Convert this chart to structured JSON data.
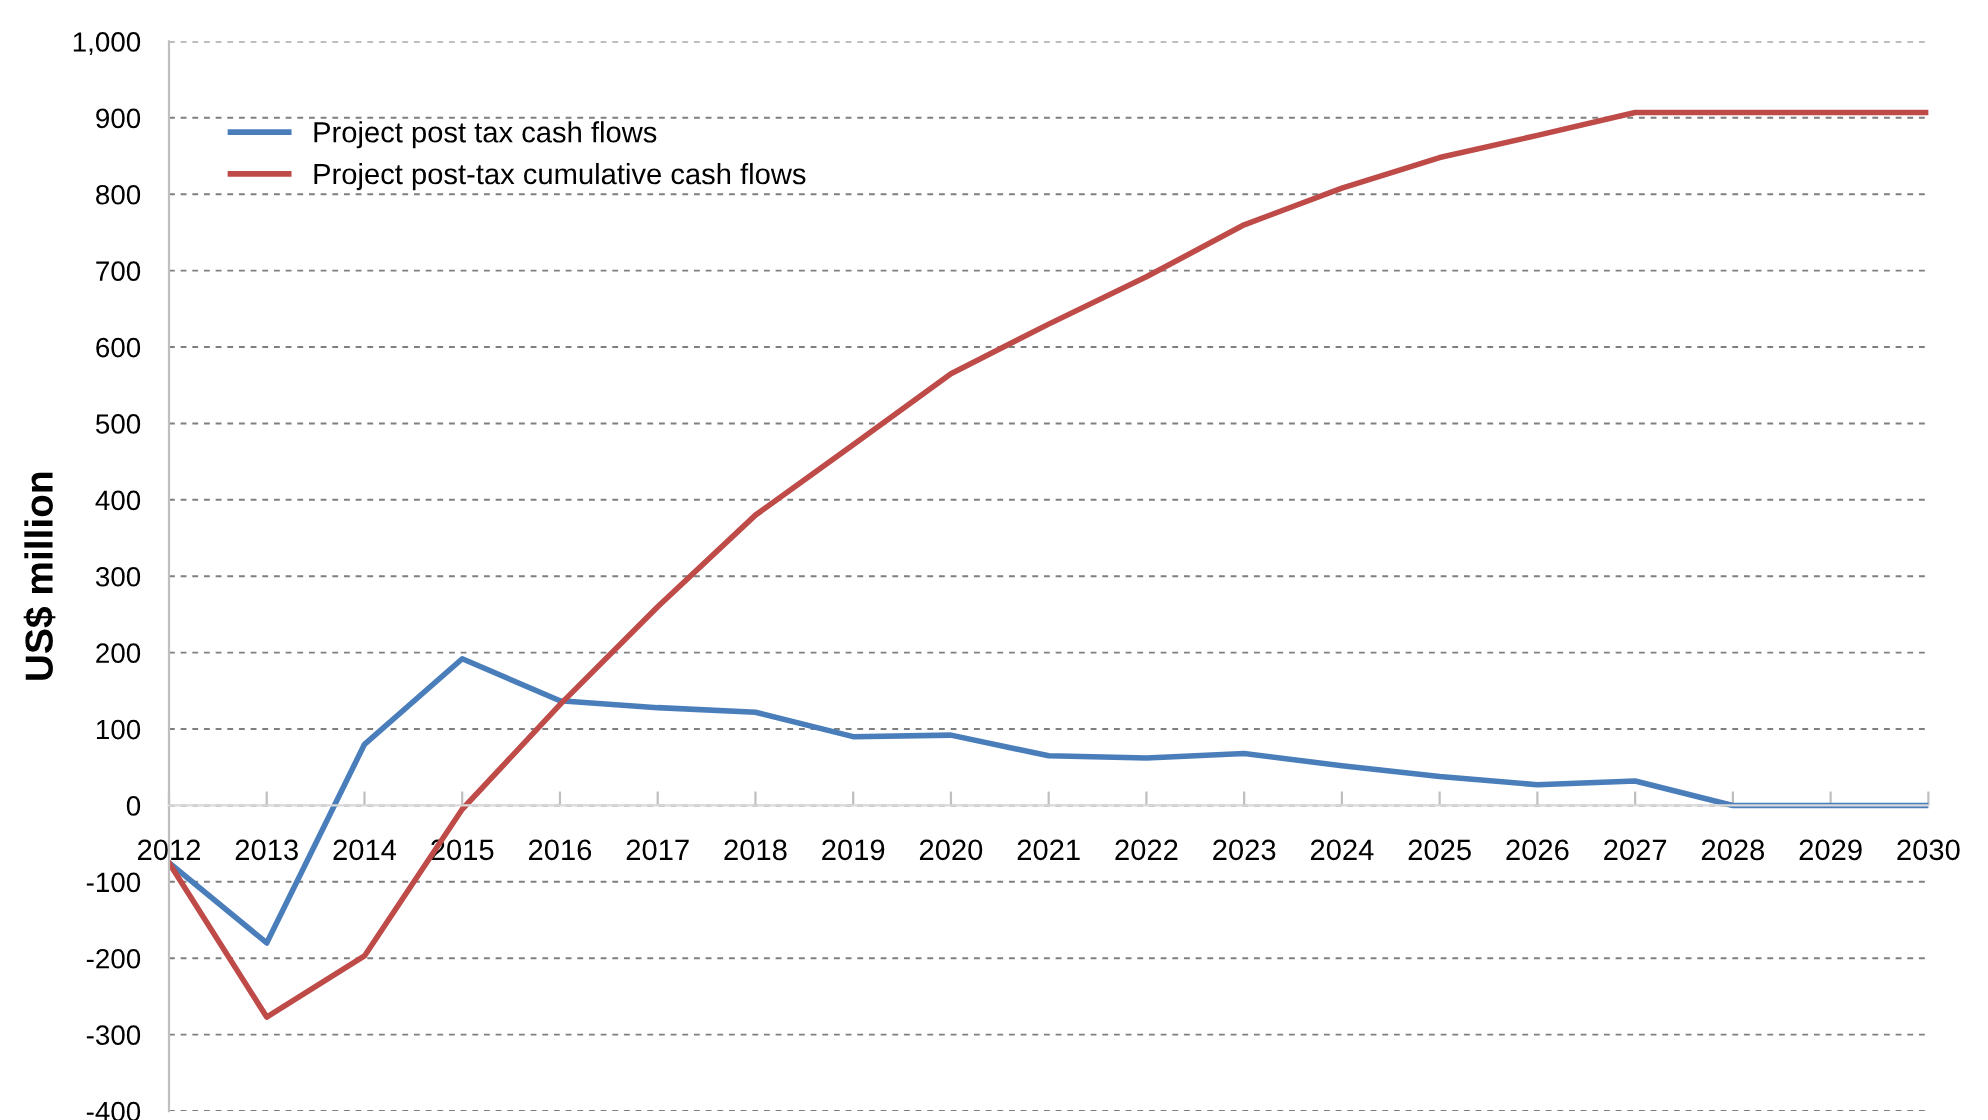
{
  "chart_data": {
    "type": "line",
    "ylabel": "US$ million",
    "categories": [
      "2012",
      "2013",
      "2014",
      "2015",
      "2016",
      "2017",
      "2018",
      "2019",
      "2020",
      "2021",
      "2022",
      "2023",
      "2024",
      "2025",
      "2026",
      "2027",
      "2028",
      "2029",
      "2030"
    ],
    "series": [
      {
        "name": "Project post tax cash flows",
        "color": "#4a7ebb",
        "values": [
          -75,
          -180,
          80,
          192,
          137,
          128,
          122,
          90,
          92,
          65,
          62,
          68,
          52,
          38,
          27,
          32,
          0,
          0,
          0
        ]
      },
      {
        "name": "Project post-tax cumulative cash flows",
        "color": "#be4b48",
        "values": [
          -75,
          -277,
          -197,
          -5,
          132,
          260,
          380,
          472,
          565,
          630,
          692,
          760,
          808,
          848,
          877,
          907,
          907,
          907,
          907
        ]
      }
    ],
    "ylim": [
      -400,
      1000
    ],
    "yticks": [
      {
        "value": -400,
        "label": "-400"
      },
      {
        "value": -300,
        "label": "-300"
      },
      {
        "value": -200,
        "label": "-200"
      },
      {
        "value": -100,
        "label": "-100"
      },
      0,
      100,
      200,
      300,
      400,
      500,
      600,
      700,
      800,
      900,
      {
        "value": 1000,
        "label": "1,000"
      }
    ],
    "grid": "y",
    "legend": "top left",
    "marker": "none",
    "line_style": "solid"
  }
}
